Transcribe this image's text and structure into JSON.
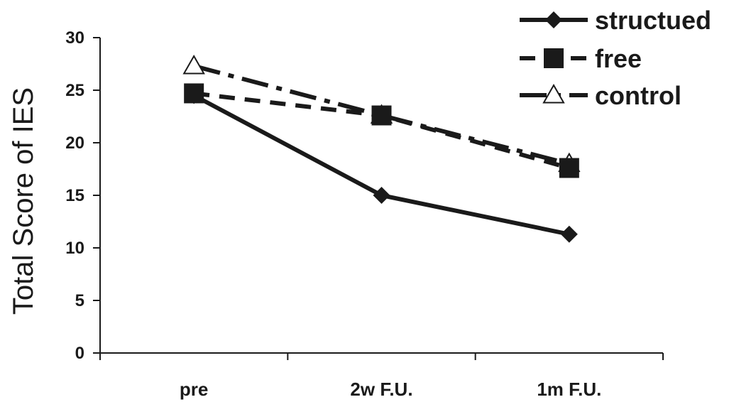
{
  "chart_data": {
    "type": "line",
    "title": "",
    "xlabel": "",
    "ylabel": "Total Score of IES",
    "categories": [
      "pre",
      "2w F.U.",
      "1m F.U."
    ],
    "ylim": [
      0,
      30
    ],
    "yticks": [
      0,
      5,
      10,
      15,
      20,
      25,
      30
    ],
    "grid": false,
    "legend_position": "top-right",
    "series": [
      {
        "name": "structued",
        "values": [
          24.5,
          15.0,
          11.3
        ],
        "marker": "diamond",
        "line_style": "solid",
        "color": "#1a1a1a"
      },
      {
        "name": "free",
        "values": [
          24.7,
          22.6,
          17.6
        ],
        "marker": "square",
        "line_style": "dashed",
        "color": "#1a1a1a"
      },
      {
        "name": "control",
        "values": [
          27.3,
          22.6,
          18.0
        ],
        "marker": "triangle-open",
        "line_style": "dash-dot",
        "color": "#1a1a1a"
      }
    ]
  }
}
